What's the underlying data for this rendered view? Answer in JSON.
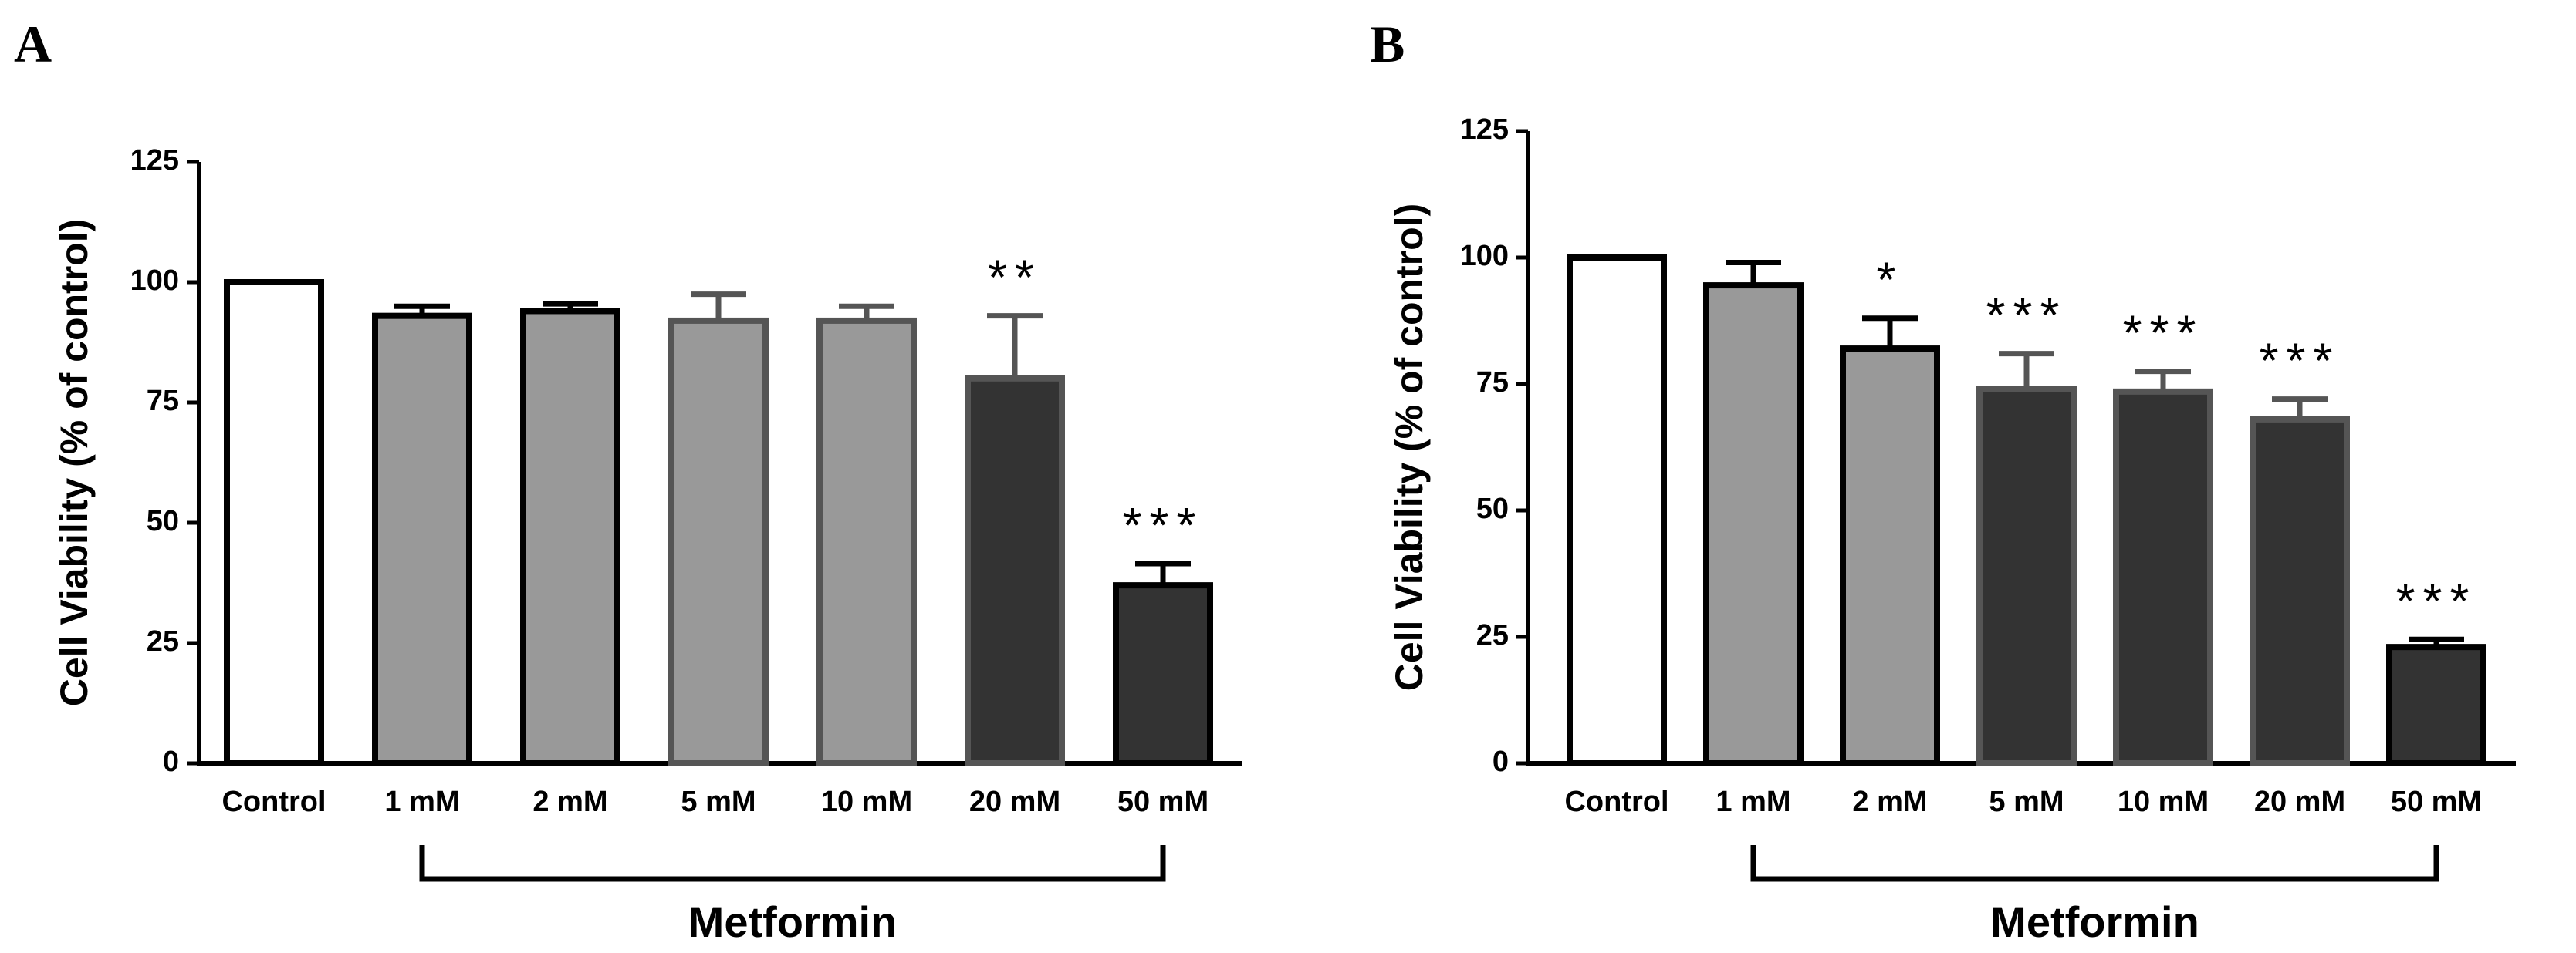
{
  "chart_data": [
    {
      "panel": "A",
      "type": "bar",
      "ylabel": "Cell Viability (% of control)",
      "ylim": [
        0,
        125
      ],
      "yticks": [
        0,
        25,
        50,
        75,
        100,
        125
      ],
      "categories": [
        "Control",
        "1 mM",
        "2 mM",
        "5 mM",
        "10 mM",
        "20 mM",
        "50 mM"
      ],
      "values": [
        100,
        93,
        94,
        92,
        92,
        80,
        37
      ],
      "errors": [
        0,
        2,
        1.5,
        5.5,
        3,
        13,
        4.5
      ],
      "significance": [
        "",
        "",
        "",
        "",
        "",
        "**",
        "***"
      ],
      "fills": [
        "#ffffff",
        "#999999",
        "#999999",
        "#999999",
        "#999999",
        "#333333",
        "#333333"
      ],
      "strokes": [
        "#000000",
        "#000000",
        "#000000",
        "#555555",
        "#555555",
        "#555555",
        "#000000"
      ],
      "group_label": "Metformin",
      "group_range": [
        1,
        6
      ]
    },
    {
      "panel": "B",
      "type": "bar",
      "ylabel": "Cell Viability (% of control)",
      "ylim": [
        0,
        125
      ],
      "yticks": [
        0,
        25,
        50,
        75,
        100,
        125
      ],
      "categories": [
        "Control",
        "1 mM",
        "2 mM",
        "5 mM",
        "10 mM",
        "20 mM",
        "50 mM"
      ],
      "values": [
        100,
        94.5,
        82,
        74,
        73.5,
        68,
        23
      ],
      "errors": [
        0,
        4.5,
        6,
        7,
        4,
        4,
        1.5
      ],
      "significance": [
        "",
        "",
        "*",
        "***",
        "***",
        "***",
        "***"
      ],
      "fills": [
        "#ffffff",
        "#999999",
        "#999999",
        "#333333",
        "#333333",
        "#333333",
        "#333333"
      ],
      "strokes": [
        "#000000",
        "#000000",
        "#000000",
        "#555555",
        "#555555",
        "#555555",
        "#000000"
      ],
      "group_label": "Metformin",
      "group_range": [
        1,
        6
      ]
    }
  ]
}
